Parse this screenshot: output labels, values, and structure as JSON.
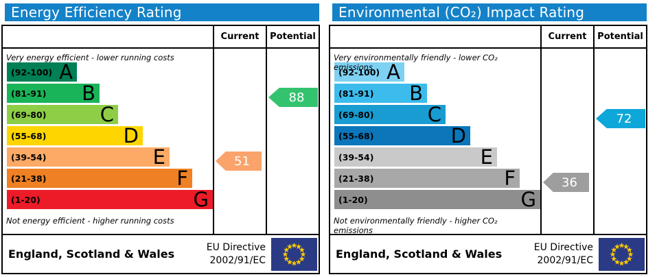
{
  "colors": {
    "title_bar": "#1482c8",
    "flag_blue": "#2a3a85",
    "flag_star": "#ffcc00"
  },
  "panels": [
    {
      "title": "Energy Efficiency Rating",
      "columns": {
        "current": "Current",
        "potential": "Potential"
      },
      "top_note": "Very energy efficient - lower running costs",
      "bottom_note": "Not energy efficient - higher running costs",
      "bands": [
        {
          "range": "(92-100)",
          "letter": "A",
          "color": "#008054",
          "width_pct": 34
        },
        {
          "range": "(81-91)",
          "letter": "B",
          "color": "#19b459",
          "width_pct": 45
        },
        {
          "range": "(69-80)",
          "letter": "C",
          "color": "#8dce46",
          "width_pct": 54
        },
        {
          "range": "(55-68)",
          "letter": "D",
          "color": "#ffd500",
          "width_pct": 66
        },
        {
          "range": "(39-54)",
          "letter": "E",
          "color": "#fcaa65",
          "width_pct": 79
        },
        {
          "range": "(21-38)",
          "letter": "F",
          "color": "#ef8023",
          "width_pct": 90
        },
        {
          "range": "(1-20)",
          "letter": "G",
          "color": "#ec1b28",
          "width_pct": 100
        }
      ],
      "current": {
        "value": "51",
        "band_index": 4,
        "color": "#faa36b"
      },
      "potential": {
        "value": "88",
        "band_index": 1,
        "color": "#33c36f"
      },
      "footer": {
        "region": "England, Scotland & Wales",
        "directive_line1": "EU Directive",
        "directive_line2": "2002/91/EC"
      }
    },
    {
      "title": "Environmental (CO₂) Impact Rating",
      "columns": {
        "current": "Current",
        "potential": "Potential"
      },
      "top_note": "Very environmentally friendly - lower CO₂ emissions",
      "bottom_note": "Not environmentally friendly - higher CO₂ emissions",
      "bands": [
        {
          "range": "(92-100)",
          "letter": "A",
          "color": "#7ed1f2",
          "width_pct": 34
        },
        {
          "range": "(81-91)",
          "letter": "B",
          "color": "#3cbced",
          "width_pct": 45
        },
        {
          "range": "(69-80)",
          "letter": "C",
          "color": "#189cd1",
          "width_pct": 54
        },
        {
          "range": "(55-68)",
          "letter": "D",
          "color": "#0b76ba",
          "width_pct": 66
        },
        {
          "range": "(39-54)",
          "letter": "E",
          "color": "#c9c9c9",
          "width_pct": 79
        },
        {
          "range": "(21-38)",
          "letter": "F",
          "color": "#a8a8a8",
          "width_pct": 90
        },
        {
          "range": "(1-20)",
          "letter": "G",
          "color": "#8e8e8e",
          "width_pct": 100
        }
      ],
      "current": {
        "value": "36",
        "band_index": 5,
        "color": "#9e9e9e"
      },
      "potential": {
        "value": "72",
        "band_index": 2,
        "color": "#0ea7d9"
      },
      "footer": {
        "region": "England, Scotland & Wales",
        "directive_line1": "EU Directive",
        "directive_line2": "2002/91/EC"
      }
    }
  ],
  "chart_data": [
    {
      "type": "bar",
      "title": "Energy Efficiency Rating",
      "categories": [
        "A (92-100)",
        "B (81-91)",
        "C (69-80)",
        "D (55-68)",
        "E (39-54)",
        "F (21-38)",
        "G (1-20)"
      ],
      "values": [
        34,
        45,
        54,
        66,
        79,
        90,
        100
      ],
      "value_note": "bar lengths as % of chart width",
      "current": 51,
      "current_band": "E",
      "potential": 88,
      "potential_band": "B",
      "score_range": [
        1,
        100
      ],
      "annotations": [
        "Very energy efficient - lower running costs",
        "Not energy efficient - higher running costs",
        "England, Scotland & Wales",
        "EU Directive 2002/91/EC"
      ]
    },
    {
      "type": "bar",
      "title": "Environmental (CO₂) Impact Rating",
      "categories": [
        "A (92-100)",
        "B (81-91)",
        "C (69-80)",
        "D (55-68)",
        "E (39-54)",
        "F (21-38)",
        "G (1-20)"
      ],
      "values": [
        34,
        45,
        54,
        66,
        79,
        90,
        100
      ],
      "value_note": "bar lengths as % of chart width",
      "current": 36,
      "current_band": "F",
      "potential": 72,
      "potential_band": "C",
      "score_range": [
        1,
        100
      ],
      "annotations": [
        "Very environmentally friendly - lower CO₂ emissions",
        "Not environmentally friendly - higher CO₂ emissions",
        "England, Scotland & Wales",
        "EU Directive 2002/91/EC"
      ]
    }
  ]
}
